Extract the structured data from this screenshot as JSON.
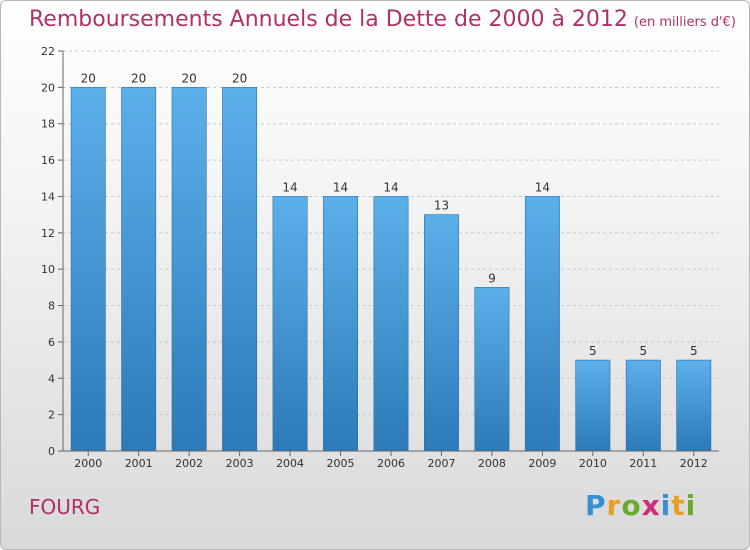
{
  "title": "Remboursements Annuels de la Dette de 2000 à 2012",
  "subtitle": "(en milliers d'€)",
  "town": "FOURG",
  "brand": {
    "letters": [
      "P",
      "r",
      "o",
      "x",
      "i",
      "t",
      "i"
    ],
    "colors": [
      "#3a8fd0",
      "#e8a020",
      "#6aaa2e",
      "#d02a7a",
      "#3a8fd0",
      "#e8a020",
      "#6aaa2e"
    ]
  },
  "colors": {
    "bar": "#4ca3e2",
    "bar_dark": "#2f7fc0",
    "text_accent": "#b0306a",
    "grid": "#c8c8c8"
  },
  "chart_data": {
    "type": "bar",
    "categories": [
      "2000",
      "2001",
      "2002",
      "2003",
      "2004",
      "2005",
      "2006",
      "2007",
      "2008",
      "2009",
      "2010",
      "2011",
      "2012"
    ],
    "values": [
      20,
      20,
      20,
      20,
      14,
      14,
      14,
      13,
      9,
      14,
      5,
      5,
      5
    ],
    "ylim": [
      0,
      22
    ],
    "yticks": [
      0,
      2,
      4,
      6,
      8,
      10,
      12,
      14,
      16,
      18,
      20,
      22
    ],
    "grid": true,
    "data_labels": true
  }
}
